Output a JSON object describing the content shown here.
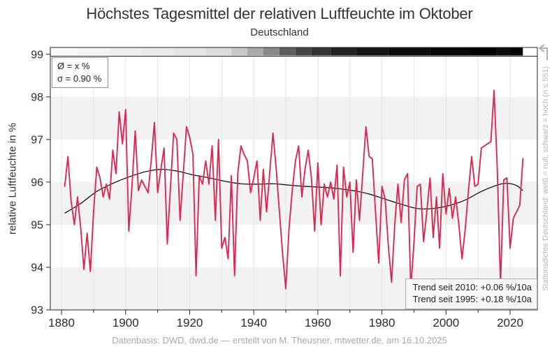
{
  "title": "Höchstes Tagesmittel der relativen Luftfeuchte im Oktober",
  "subtitle": "Deutschland",
  "stats_box": {
    "mean_label": "Ø = x %",
    "sigma_label": "σ = 0.90 %"
  },
  "trend_box": {
    "trend_2010": "Trend seit 2010: +0.06 %/10a",
    "trend_1995": "Trend seit 1995: +0.18 %/10a"
  },
  "side_note": "Stationsdichte Deutschland: weiß = null, schwarz = hoch (n ≤ 551)",
  "footer": "Datenbasis: DWD, dwd.de — erstellt von M. Theusner, mtwetter.de, am 16.10.2025",
  "colors": {
    "series": "#dc2850",
    "smoothed": "#000000",
    "band": "#f2f2f2",
    "grid": "#e3e3e3",
    "spine": "#222222",
    "tick_text": "#2b2b2b",
    "footer_text": "#a9a9a9",
    "side_note_text": "#b5b5b5",
    "arrow": "#b0b0b0"
  },
  "chart_data": {
    "type": "line",
    "title": "Höchstes Tagesmittel der relativen Luftfeuchte im Oktober",
    "subtitle": "Deutschland",
    "xlabel": "",
    "ylabel": "relative Luftfeuchte in %",
    "xlim": [
      1876.5,
      2028.5
    ],
    "ylim": [
      93,
      99.16
    ],
    "x_ticks_labeled": [
      1880,
      1900,
      1920,
      1940,
      1960,
      1980,
      2000,
      2020
    ],
    "x_gridline_years": [
      1880,
      1890,
      1900,
      1910,
      1920,
      1930,
      1940,
      1950,
      1960,
      1970,
      1980,
      1990,
      2000,
      2010,
      2020
    ],
    "y_ticks": [
      93,
      94,
      95,
      96,
      97,
      98,
      99
    ],
    "shaded_bands": [
      [
        93,
        94
      ],
      [
        95,
        96
      ],
      [
        97,
        98
      ]
    ],
    "grid": "vertical-only",
    "legend_position": "none",
    "series": [
      {
        "name": "annual-values",
        "color": "#dc2850",
        "points": [
          [
            1881,
            95.9
          ],
          [
            1882,
            96.6
          ],
          [
            1883,
            95.55
          ],
          [
            1884,
            95.0
          ],
          [
            1885,
            95.65
          ],
          [
            1886,
            94.9
          ],
          [
            1887,
            93.95
          ],
          [
            1888,
            94.8
          ],
          [
            1889,
            93.9
          ],
          [
            1890,
            95.3
          ],
          [
            1891,
            96.35
          ],
          [
            1892,
            96.1
          ],
          [
            1893,
            95.65
          ],
          [
            1894,
            95.95
          ],
          [
            1895,
            95.6
          ],
          [
            1896,
            96.75
          ],
          [
            1897,
            96.2
          ],
          [
            1898,
            97.65
          ],
          [
            1899,
            96.9
          ],
          [
            1900,
            97.7
          ],
          [
            1901,
            94.85
          ],
          [
            1902,
            95.9
          ],
          [
            1903,
            97.2
          ],
          [
            1904,
            95.8
          ],
          [
            1905,
            96.05
          ],
          [
            1906,
            95.9
          ],
          [
            1907,
            95.75
          ],
          [
            1908,
            96.5
          ],
          [
            1909,
            97.4
          ],
          [
            1910,
            95.75
          ],
          [
            1911,
            96.3
          ],
          [
            1912,
            96.8
          ],
          [
            1913,
            94.55
          ],
          [
            1914,
            95.9
          ],
          [
            1915,
            97.15
          ],
          [
            1916,
            97.0
          ],
          [
            1917,
            95.1
          ],
          [
            1918,
            96.2
          ],
          [
            1919,
            97.3
          ],
          [
            1920,
            97.05
          ],
          [
            1921,
            96.65
          ],
          [
            1922,
            93.8
          ],
          [
            1923,
            96.15
          ],
          [
            1924,
            95.95
          ],
          [
            1925,
            96.5
          ],
          [
            1926,
            95.95
          ],
          [
            1927,
            96.85
          ],
          [
            1928,
            95.1
          ],
          [
            1929,
            97.0
          ],
          [
            1930,
            94.45
          ],
          [
            1931,
            94.7
          ],
          [
            1932,
            94.2
          ],
          [
            1933,
            96.15
          ],
          [
            1934,
            93.8
          ],
          [
            1935,
            96.2
          ],
          [
            1936,
            96.85
          ],
          [
            1937,
            96.65
          ],
          [
            1938,
            96.5
          ],
          [
            1939,
            95.75
          ],
          [
            1940,
            96.1
          ],
          [
            1941,
            96.5
          ],
          [
            1942,
            95.1
          ],
          [
            1943,
            96.3
          ],
          [
            1944,
            95.3
          ],
          [
            1945,
            96.25
          ],
          [
            1946,
            97.15
          ],
          [
            1947,
            96.3
          ],
          [
            1948,
            95.3
          ],
          [
            1949,
            94.3
          ],
          [
            1950,
            93.5
          ],
          [
            1951,
            94.9
          ],
          [
            1952,
            95.8
          ],
          [
            1953,
            96.5
          ],
          [
            1954,
            96.85
          ],
          [
            1955,
            95.65
          ],
          [
            1956,
            96.3
          ],
          [
            1957,
            96.75
          ],
          [
            1958,
            96.1
          ],
          [
            1959,
            94.85
          ],
          [
            1960,
            96.45
          ],
          [
            1961,
            95.0
          ],
          [
            1962,
            95.95
          ],
          [
            1963,
            95.65
          ],
          [
            1964,
            96.0
          ],
          [
            1965,
            95.6
          ],
          [
            1966,
            96.4
          ],
          [
            1967,
            93.8
          ],
          [
            1968,
            96.35
          ],
          [
            1969,
            95.65
          ],
          [
            1970,
            96.0
          ],
          [
            1971,
            94.35
          ],
          [
            1972,
            96.05
          ],
          [
            1973,
            95.1
          ],
          [
            1974,
            96.2
          ],
          [
            1975,
            97.3
          ],
          [
            1976,
            96.6
          ],
          [
            1977,
            96.55
          ],
          [
            1978,
            95.3
          ],
          [
            1979,
            94.1
          ],
          [
            1980,
            95.9
          ],
          [
            1981,
            95.6
          ],
          [
            1982,
            94.5
          ],
          [
            1983,
            93.65
          ],
          [
            1984,
            95.0
          ],
          [
            1985,
            95.95
          ],
          [
            1986,
            95.05
          ],
          [
            1987,
            96.05
          ],
          [
            1988,
            96.2
          ],
          [
            1989,
            93.5
          ],
          [
            1990,
            94.6
          ],
          [
            1991,
            95.9
          ],
          [
            1992,
            95.95
          ],
          [
            1993,
            94.6
          ],
          [
            1994,
            95.3
          ],
          [
            1995,
            96.1
          ],
          [
            1996,
            94.7
          ],
          [
            1997,
            95.65
          ],
          [
            1998,
            94.45
          ],
          [
            1999,
            96.2
          ],
          [
            2000,
            95.25
          ],
          [
            2001,
            95.85
          ],
          [
            2002,
            95.15
          ],
          [
            2003,
            95.65
          ],
          [
            2004,
            95.0
          ],
          [
            2005,
            94.2
          ],
          [
            2006,
            94.9
          ],
          [
            2007,
            95.8
          ],
          [
            2008,
            96.6
          ],
          [
            2009,
            95.9
          ],
          [
            2010,
            95.95
          ],
          [
            2011,
            96.8
          ],
          [
            2012,
            96.85
          ],
          [
            2013,
            96.9
          ],
          [
            2014,
            96.95
          ],
          [
            2015,
            98.15
          ],
          [
            2016,
            96.3
          ],
          [
            2017,
            93.6
          ],
          [
            2018,
            96.05
          ],
          [
            2019,
            96.1
          ],
          [
            2020,
            94.45
          ],
          [
            2021,
            95.15
          ],
          [
            2022,
            95.3
          ],
          [
            2023,
            95.45
          ],
          [
            2024,
            96.55
          ]
        ]
      },
      {
        "name": "smoothed-lowpass",
        "color": "#000000",
        "points": [
          [
            1881,
            95.27
          ],
          [
            1886,
            95.5
          ],
          [
            1891,
            95.78
          ],
          [
            1896,
            95.97
          ],
          [
            1901,
            96.12
          ],
          [
            1906,
            96.24
          ],
          [
            1911,
            96.3
          ],
          [
            1916,
            96.26
          ],
          [
            1921,
            96.17
          ],
          [
            1926,
            96.1
          ],
          [
            1931,
            96.02
          ],
          [
            1936,
            95.96
          ],
          [
            1941,
            95.95
          ],
          [
            1946,
            95.96
          ],
          [
            1951,
            95.93
          ],
          [
            1956,
            95.9
          ],
          [
            1961,
            95.88
          ],
          [
            1966,
            95.85
          ],
          [
            1971,
            95.8
          ],
          [
            1976,
            95.72
          ],
          [
            1981,
            95.6
          ],
          [
            1986,
            95.48
          ],
          [
            1991,
            95.38
          ],
          [
            1996,
            95.38
          ],
          [
            2001,
            95.45
          ],
          [
            2006,
            95.58
          ],
          [
            2011,
            95.78
          ],
          [
            2016,
            95.93
          ],
          [
            2019,
            95.97
          ],
          [
            2022,
            95.92
          ],
          [
            2024,
            95.8
          ]
        ]
      }
    ],
    "station_density_strip": {
      "note": "Stationsdichte Deutschland: weiß = null, schwarz = hoch (n ≤ 551)",
      "segments": [
        {
          "from": 1876.5,
          "to": 1885,
          "color": "#fafafa"
        },
        {
          "from": 1885,
          "to": 1895,
          "color": "#f4f4f4"
        },
        {
          "from": 1895,
          "to": 1905,
          "color": "#efefef"
        },
        {
          "from": 1905,
          "to": 1915,
          "color": "#eaeaea"
        },
        {
          "from": 1915,
          "to": 1925,
          "color": "#e4e4e4"
        },
        {
          "from": 1925,
          "to": 1933,
          "color": "#dcdcdc"
        },
        {
          "from": 1933,
          "to": 1938,
          "color": "#c8c8c8"
        },
        {
          "from": 1938,
          "to": 1943,
          "color": "#a9a9a9"
        },
        {
          "from": 1943,
          "to": 1948,
          "color": "#888888"
        },
        {
          "from": 1948,
          "to": 1953,
          "color": "#5f5f5f"
        },
        {
          "from": 1953,
          "to": 1958,
          "color": "#464646"
        },
        {
          "from": 1958,
          "to": 1964,
          "color": "#333333"
        },
        {
          "from": 1964,
          "to": 1972,
          "color": "#222222"
        },
        {
          "from": 1972,
          "to": 1982,
          "color": "#151515"
        },
        {
          "from": 1982,
          "to": 1995,
          "color": "#0c0c0c"
        },
        {
          "from": 1995,
          "to": 2008,
          "color": "#050505"
        },
        {
          "from": 2008,
          "to": 2016,
          "color": "#000000"
        },
        {
          "from": 2016,
          "to": 2020,
          "color": "#0a0a0a"
        },
        {
          "from": 2020,
          "to": 2024,
          "color": "#020202"
        },
        {
          "from": 2024,
          "to": 2028.5,
          "color": "#ffffff"
        }
      ]
    }
  }
}
